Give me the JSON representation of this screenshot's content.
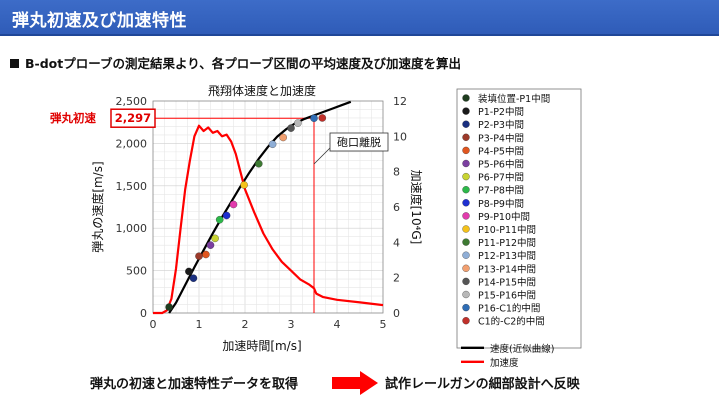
{
  "header": {
    "title": "弾丸初速及び加速特性"
  },
  "subtitle": "B-dotプローブの測定結果より、各プローブ区間の平均速度及び加速度を算出",
  "footer": {
    "left_text": "弾丸の初速と加速特性データを取得",
    "right_text": "試作レールガンの細部設計へ反映",
    "arrow_color": "#ff0000"
  },
  "chart_data": {
    "type": "scatter",
    "title": "飛翔体速度と加速度",
    "xlabel": "加速時間[m/s]",
    "ylabel": "弾丸の速度[m/s]",
    "y2label": "加速度[10⁴G]",
    "xlim": [
      0,
      5
    ],
    "ylim": [
      0,
      2500
    ],
    "y2lim": [
      0,
      12
    ],
    "x_ticks": [
      "0",
      "1",
      "2",
      "3",
      "4",
      "5"
    ],
    "y_ticks": [
      "0",
      "500",
      "1,000",
      "1,500",
      "2,000",
      "2,500"
    ],
    "y2_ticks": [
      "0",
      "2",
      "4",
      "6",
      "8",
      "10",
      "12"
    ],
    "grid": true,
    "legend_position": "right",
    "annotations": {
      "initial_velocity_label": "弾丸初速",
      "initial_velocity_value": "2,297",
      "muzzle_exit_label": "砲口離脱",
      "muzzle_exit_x": 3.5,
      "initial_velocity_y": 2297
    },
    "points": [
      {
        "name": "装填位置-P1中間",
        "x": 0.35,
        "y": 70,
        "color": "#1f3d1f"
      },
      {
        "name": "P1-P2中間",
        "x": 0.78,
        "y": 490,
        "color": "#1a1a1a"
      },
      {
        "name": "P2-P3中間",
        "x": 0.88,
        "y": 410,
        "color": "#1a2f80"
      },
      {
        "name": "P3-P4中間",
        "x": 1.0,
        "y": 670,
        "color": "#9c3a2a"
      },
      {
        "name": "P4-P5中間",
        "x": 1.15,
        "y": 690,
        "color": "#e0561f"
      },
      {
        "name": "P5-P6中間",
        "x": 1.25,
        "y": 800,
        "color": "#7b3fa0"
      },
      {
        "name": "P6-P7中間",
        "x": 1.35,
        "y": 880,
        "color": "#c8d432"
      },
      {
        "name": "P7-P8中間",
        "x": 1.45,
        "y": 1100,
        "color": "#2db84a"
      },
      {
        "name": "P8-P9中間",
        "x": 1.6,
        "y": 1150,
        "color": "#1e2fd0"
      },
      {
        "name": "P9-P10中間",
        "x": 1.75,
        "y": 1280,
        "color": "#e23cad"
      },
      {
        "name": "P10-P11中間",
        "x": 1.98,
        "y": 1510,
        "color": "#f4c21b"
      },
      {
        "name": "P11-P12中間",
        "x": 2.3,
        "y": 1760,
        "color": "#3d7a32"
      },
      {
        "name": "P12-P13中間",
        "x": 2.6,
        "y": 1990,
        "color": "#8faed6"
      },
      {
        "name": "P13-P14中間",
        "x": 2.83,
        "y": 2070,
        "color": "#f2a070"
      },
      {
        "name": "P14-P15中間",
        "x": 3.0,
        "y": 2180,
        "color": "#555555"
      },
      {
        "name": "P15-P16中間",
        "x": 3.15,
        "y": 2240,
        "color": "#b8b8b8"
      },
      {
        "name": "P16-C1的中間",
        "x": 3.5,
        "y": 2297,
        "color": "#2f6db5"
      },
      {
        "name": "C1的-C2的中間",
        "x": 3.68,
        "y": 2300,
        "color": "#c0302a"
      }
    ],
    "series": [
      {
        "name": "速度(近似曲線)",
        "color": "#000000",
        "axis": "left",
        "x": [
          0.35,
          0.5,
          0.7,
          0.9,
          1.1,
          1.3,
          1.5,
          1.7,
          1.9,
          2.1,
          2.3,
          2.5,
          2.7,
          2.9,
          3.1,
          3.3,
          3.5,
          3.7,
          3.9,
          4.1,
          4.3
        ],
        "y": [
          0,
          120,
          330,
          540,
          740,
          940,
          1130,
          1310,
          1490,
          1660,
          1820,
          1960,
          2080,
          2170,
          2240,
          2290,
          2330,
          2370,
          2410,
          2450,
          2490
        ]
      },
      {
        "name": "加速度",
        "color": "#ff0000",
        "axis": "right",
        "x": [
          0,
          0.1,
          0.2,
          0.3,
          0.4,
          0.5,
          0.6,
          0.7,
          0.8,
          0.9,
          1.0,
          1.1,
          1.2,
          1.3,
          1.4,
          1.5,
          1.6,
          1.7,
          1.8,
          1.9,
          2.0,
          2.2,
          2.4,
          2.6,
          2.8,
          3.0,
          3.2,
          3.4,
          3.5,
          3.55,
          3.7,
          4.0,
          4.5,
          5.0
        ],
        "y": [
          0,
          0,
          0,
          0.15,
          0.8,
          2.5,
          4.8,
          7.0,
          8.6,
          10.0,
          10.6,
          10.3,
          10.5,
          10.2,
          10.3,
          10.0,
          10.1,
          9.7,
          9.0,
          8.0,
          7.0,
          5.7,
          4.5,
          3.6,
          2.9,
          2.4,
          1.9,
          1.6,
          1.4,
          1.1,
          0.9,
          0.75,
          0.6,
          0.45
        ]
      }
    ]
  }
}
